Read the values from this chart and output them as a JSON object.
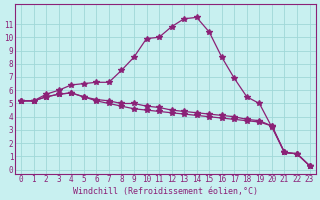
{
  "xlabel": "Windchill (Refroidissement éolien,°C)",
  "background_color": "#c8f0f0",
  "line_color": "#8b2177",
  "grid_color": "#a0d8d8",
  "xlim": [
    0,
    23
  ],
  "ylim": [
    0,
    12
  ],
  "xticks": [
    0,
    1,
    2,
    3,
    4,
    5,
    6,
    7,
    8,
    9,
    10,
    11,
    12,
    13,
    14,
    15,
    16,
    17,
    18,
    19,
    20,
    21,
    22,
    23
  ],
  "yticks": [
    0,
    1,
    2,
    3,
    4,
    5,
    6,
    7,
    8,
    9,
    10,
    11
  ],
  "line1_x": [
    0,
    1,
    2,
    3,
    4,
    5,
    6,
    7,
    8,
    9,
    10,
    11,
    12,
    13,
    14,
    15,
    16,
    17,
    18,
    19,
    20,
    21,
    22,
    23
  ],
  "line1_y": [
    5.2,
    5.2,
    5.7,
    6.0,
    6.4,
    6.5,
    6.6,
    6.6,
    7.5,
    8.5,
    9.9,
    10.0,
    10.8,
    11.4,
    11.5,
    10.4,
    8.5,
    6.9,
    5.5,
    5.0,
    3.2,
    1.3,
    1.2,
    0.3
  ],
  "line2_x": [
    0,
    1,
    2,
    3,
    4,
    5,
    6,
    7,
    8,
    9,
    10,
    11,
    12,
    13,
    14,
    15,
    16,
    17,
    18,
    19,
    20,
    21,
    22,
    23
  ],
  "line2_y": [
    5.2,
    5.2,
    5.5,
    5.7,
    5.8,
    5.5,
    5.3,
    5.2,
    5.0,
    5.0,
    4.8,
    4.7,
    4.5,
    4.4,
    4.3,
    4.2,
    4.1,
    4.0,
    3.8,
    3.7,
    3.3,
    1.3,
    1.2,
    0.3
  ],
  "line3_x": [
    0,
    1,
    2,
    3,
    4,
    5,
    6,
    7,
    8,
    9,
    10,
    11,
    12,
    13,
    14,
    15,
    16,
    17,
    18,
    19,
    20,
    21,
    22,
    23
  ],
  "line3_y": [
    5.2,
    5.2,
    5.5,
    5.7,
    5.8,
    5.5,
    5.2,
    5.0,
    4.8,
    4.6,
    4.5,
    4.4,
    4.3,
    4.2,
    4.1,
    4.0,
    3.9,
    3.8,
    3.7,
    3.6,
    3.3,
    1.3,
    1.2,
    0.3
  ]
}
